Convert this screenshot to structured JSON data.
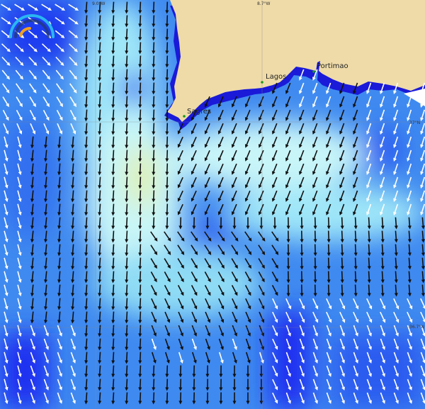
{
  "map": {
    "places": [
      {
        "name": "Sagres"
      },
      {
        "name": "Lagos"
      },
      {
        "name": "Portimao"
      }
    ],
    "graticule": {
      "longitudes": [
        "9.0°W",
        "8.7°W"
      ],
      "latitudes": [
        "37°N",
        "36.7°N"
      ]
    },
    "colors": {
      "land": "#eedba8",
      "deep_blue": "#1a2ef0",
      "mid_blue": "#3f8af0",
      "light_blue": "#8fdcf5",
      "cyan": "#c8f5f8",
      "yellow_green": "#e0f0b0",
      "arrow_dark": "#111111",
      "arrow_light": "#ffffff",
      "place_dot": "#1a9a1a"
    },
    "legend_icon": "speed-gauge-icon"
  }
}
